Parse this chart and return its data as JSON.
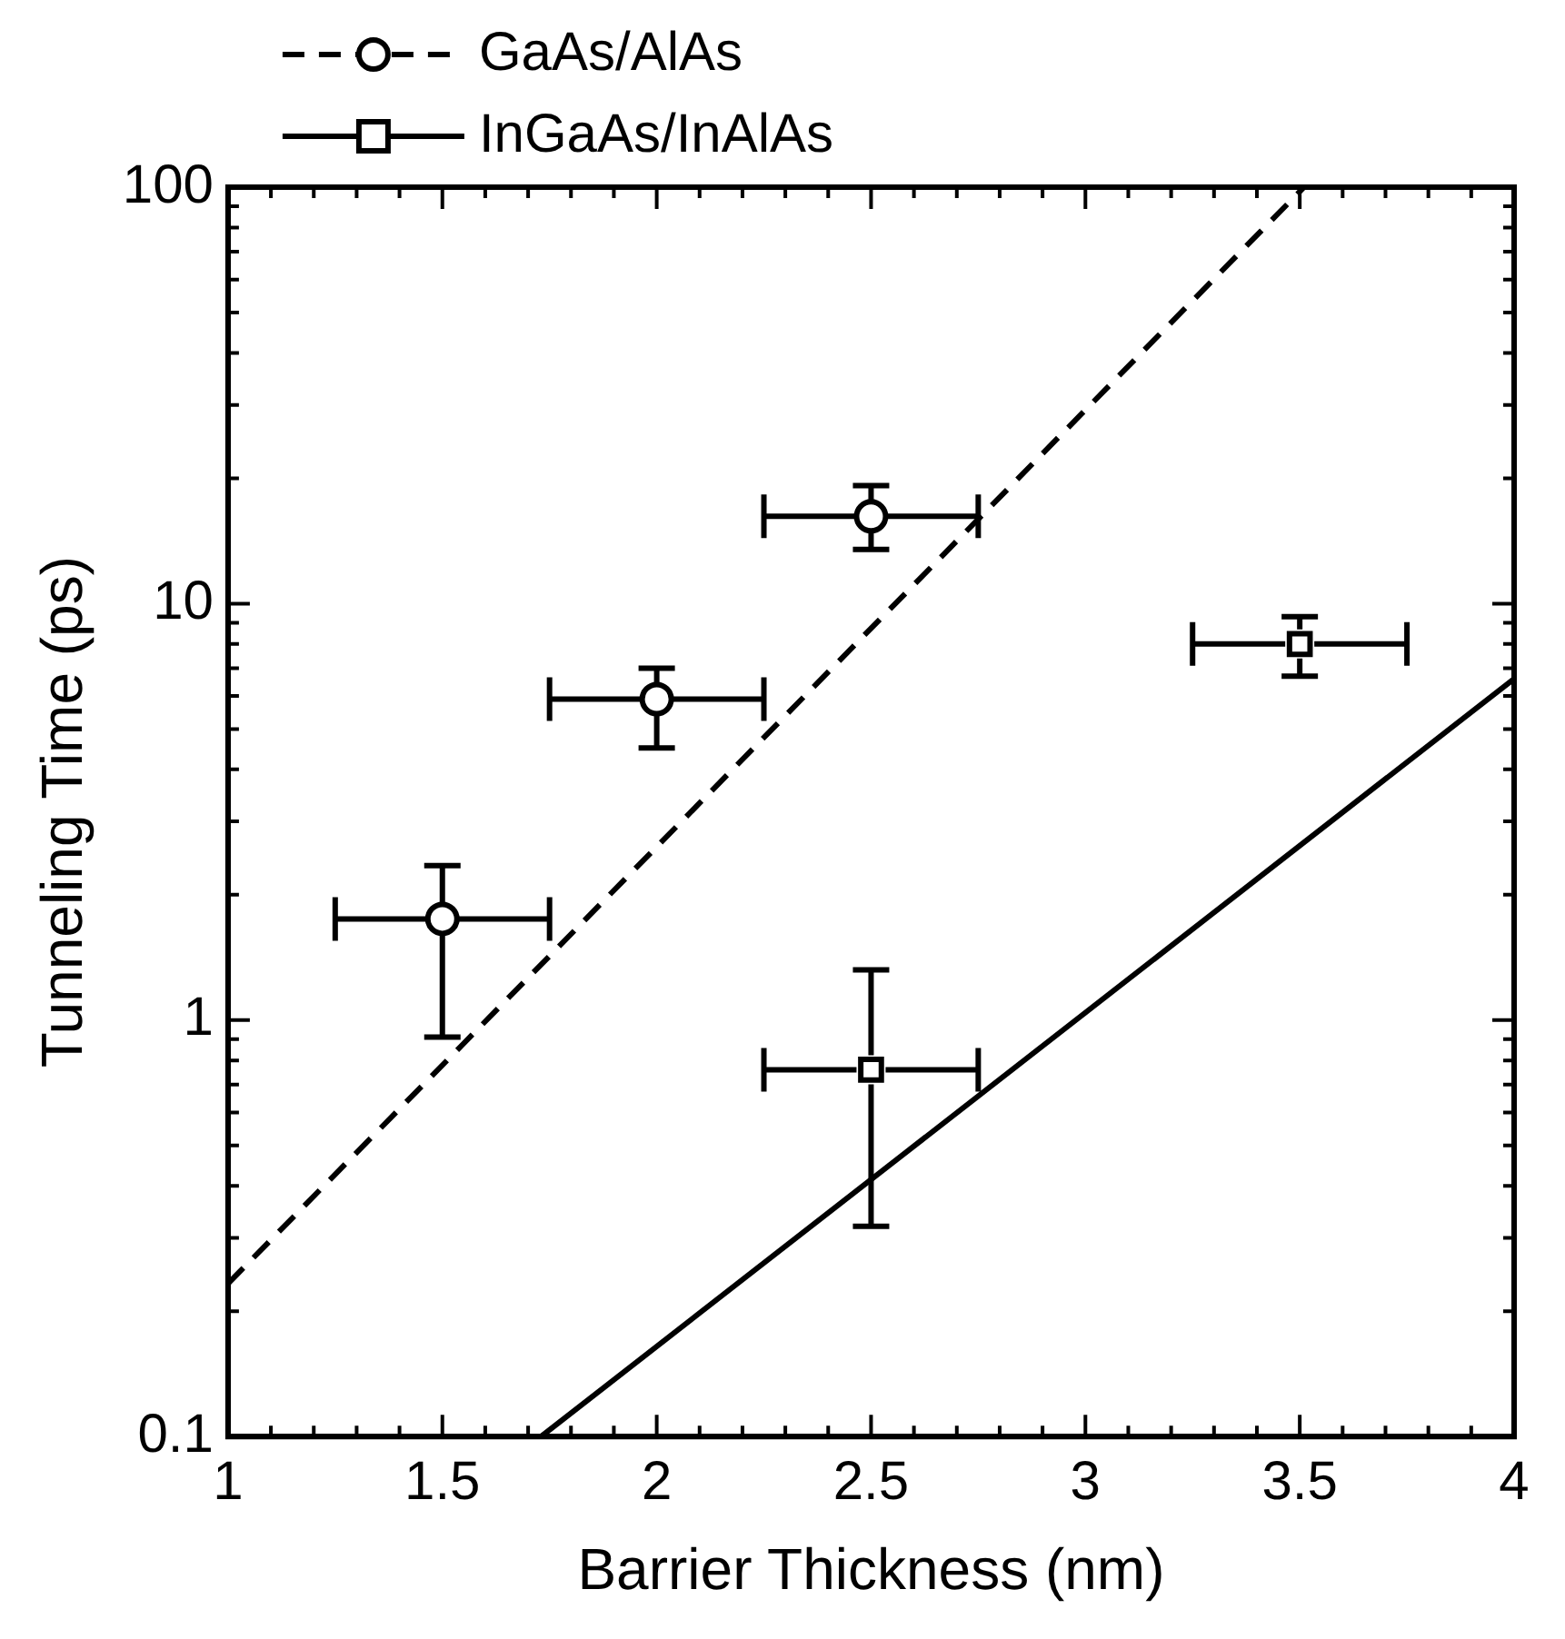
{
  "chart_data": {
    "type": "scatter",
    "xlabel": "Barrier Thickness (nm)",
    "ylabel": "Tunneling Time (ps)",
    "log": "y",
    "legend": "top left",
    "grid": false,
    "xlim": [
      1,
      4
    ],
    "ylim": [
      0.1,
      100
    ],
    "xticks": [
      1,
      {
        "value": 1.1,
        "label": null
      },
      {
        "value": 1.2,
        "label": null
      },
      {
        "value": 1.3,
        "label": null
      },
      {
        "value": 1.4,
        "label": null
      },
      1.5,
      {
        "value": 1.6,
        "label": null
      },
      {
        "value": 1.7,
        "label": null
      },
      {
        "value": 1.8,
        "label": null
      },
      {
        "value": 1.9,
        "label": null
      },
      2,
      {
        "value": 2.1,
        "label": null
      },
      {
        "value": 2.2,
        "label": null
      },
      {
        "value": 2.3,
        "label": null
      },
      {
        "value": 2.4,
        "label": null
      },
      2.5,
      {
        "value": 2.6,
        "label": null
      },
      {
        "value": 2.7,
        "label": null
      },
      {
        "value": 2.8,
        "label": null
      },
      {
        "value": 2.9,
        "label": null
      },
      3,
      {
        "value": 3.1,
        "label": null
      },
      {
        "value": 3.2,
        "label": null
      },
      {
        "value": 3.3,
        "label": null
      },
      {
        "value": 3.4,
        "label": null
      },
      3.5,
      {
        "value": 3.6,
        "label": null
      },
      {
        "value": 3.7,
        "label": null
      },
      {
        "value": 3.8,
        "label": null
      },
      {
        "value": 3.9,
        "label": null
      },
      4
    ],
    "yticks": [
      0.1,
      {
        "value": 0.2,
        "label": null
      },
      {
        "value": 0.3,
        "label": null
      },
      {
        "value": 0.4,
        "label": null
      },
      {
        "value": 0.5,
        "label": null
      },
      {
        "value": 0.6,
        "label": null
      },
      {
        "value": 0.7,
        "label": null
      },
      {
        "value": 0.8,
        "label": null
      },
      {
        "value": 0.9,
        "label": null
      },
      1,
      {
        "value": 2,
        "label": null
      },
      {
        "value": 3,
        "label": null
      },
      {
        "value": 4,
        "label": null
      },
      {
        "value": 5,
        "label": null
      },
      {
        "value": 6,
        "label": null
      },
      {
        "value": 7,
        "label": null
      },
      {
        "value": 8,
        "label": null
      },
      {
        "value": 9,
        "label": null
      },
      10,
      {
        "value": 20,
        "label": null
      },
      {
        "value": 30,
        "label": null
      },
      {
        "value": 40,
        "label": null
      },
      {
        "value": 50,
        "label": null
      },
      {
        "value": 60,
        "label": null
      },
      {
        "value": 70,
        "label": null
      },
      {
        "value": 80,
        "label": null
      },
      {
        "value": 90,
        "label": null
      },
      100
    ],
    "series": [
      {
        "name": "GaAs/AlAs",
        "type": "scatter",
        "marker": "circle",
        "line_style": "dashed",
        "color": "#000000",
        "x": [
          1.5,
          2,
          2.5
        ],
        "values": [
          1.75,
          5.9,
          16.2
        ],
        "errors": [
          [
            0.91,
            2.35
          ],
          [
            4.5,
            7.0
          ],
          [
            13.5,
            19.2
          ]
        ],
        "xerrors": [
          0.25,
          0.25,
          0.25
        ]
      },
      {
        "name": "InGaAs/InAlAs",
        "type": "scatter",
        "marker": "square",
        "line_style": "solid",
        "color": "#000000",
        "x": [
          2.5,
          3.5
        ],
        "values": [
          0.76,
          8.0
        ],
        "errors": [
          [
            0.32,
            1.32
          ],
          [
            6.7,
            9.3
          ]
        ],
        "xerrors": [
          0.25,
          0.25
        ]
      },
      {
        "type": "line",
        "line_style": "dashed",
        "marker": "none",
        "color": "#000000",
        "x": [
          1,
          3.51
        ],
        "values": [
          0.233,
          100
        ]
      },
      {
        "type": "line",
        "line_style": "solid",
        "marker": "none",
        "color": "#000000",
        "x": [
          1.73,
          4
        ],
        "values": [
          0.1,
          6.6
        ]
      }
    ]
  }
}
